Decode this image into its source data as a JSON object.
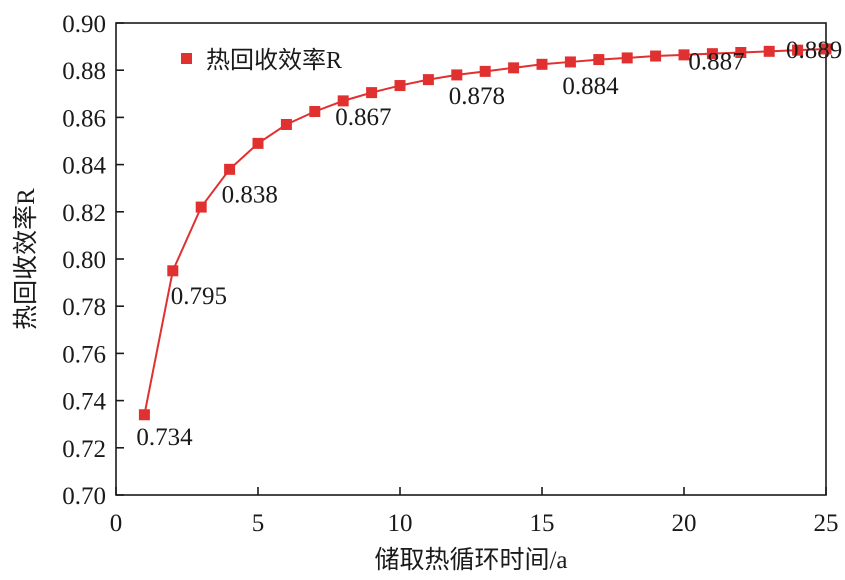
{
  "chart_data": {
    "type": "line",
    "xlabel": "储取热循环时间/a",
    "ylabel": "热回收效率R",
    "xlim": [
      0,
      25
    ],
    "ylim": [
      0.7,
      0.9
    ],
    "x_ticks": [
      "0",
      "5",
      "10",
      "15",
      "20",
      "25"
    ],
    "y_ticks": [
      "0.70",
      "0.72",
      "0.74",
      "0.76",
      "0.78",
      "0.80",
      "0.82",
      "0.84",
      "0.86",
      "0.88",
      "0.90"
    ],
    "grid": false,
    "legend_position": "top-left",
    "series": [
      {
        "name": "热回收效率R",
        "color": "#e03030",
        "marker": "square",
        "x": [
          1,
          2,
          3,
          4,
          5,
          6,
          7,
          8,
          9,
          10,
          11,
          12,
          13,
          14,
          15,
          16,
          17,
          18,
          19,
          20,
          21,
          22,
          23,
          24,
          25
        ],
        "y": [
          0.734,
          0.795,
          0.822,
          0.838,
          0.849,
          0.857,
          0.8625,
          0.867,
          0.8705,
          0.8735,
          0.876,
          0.878,
          0.8795,
          0.881,
          0.8825,
          0.8835,
          0.8845,
          0.8852,
          0.886,
          0.8865,
          0.887,
          0.8875,
          0.888,
          0.8885,
          0.889
        ]
      }
    ],
    "annotations": [
      {
        "text": "0.734",
        "x": 1,
        "y": 0.734
      },
      {
        "text": "0.795",
        "x": 2,
        "y": 0.795
      },
      {
        "text": "0.838",
        "x": 4,
        "y": 0.838
      },
      {
        "text": "0.867",
        "x": 8,
        "y": 0.867
      },
      {
        "text": "0.878",
        "x": 12,
        "y": 0.878
      },
      {
        "text": "0.884",
        "x": 16,
        "y": 0.884
      },
      {
        "text": "0.887",
        "x": 21,
        "y": 0.887
      },
      {
        "text": "0.889",
        "x": 25,
        "y": 0.889
      }
    ]
  }
}
